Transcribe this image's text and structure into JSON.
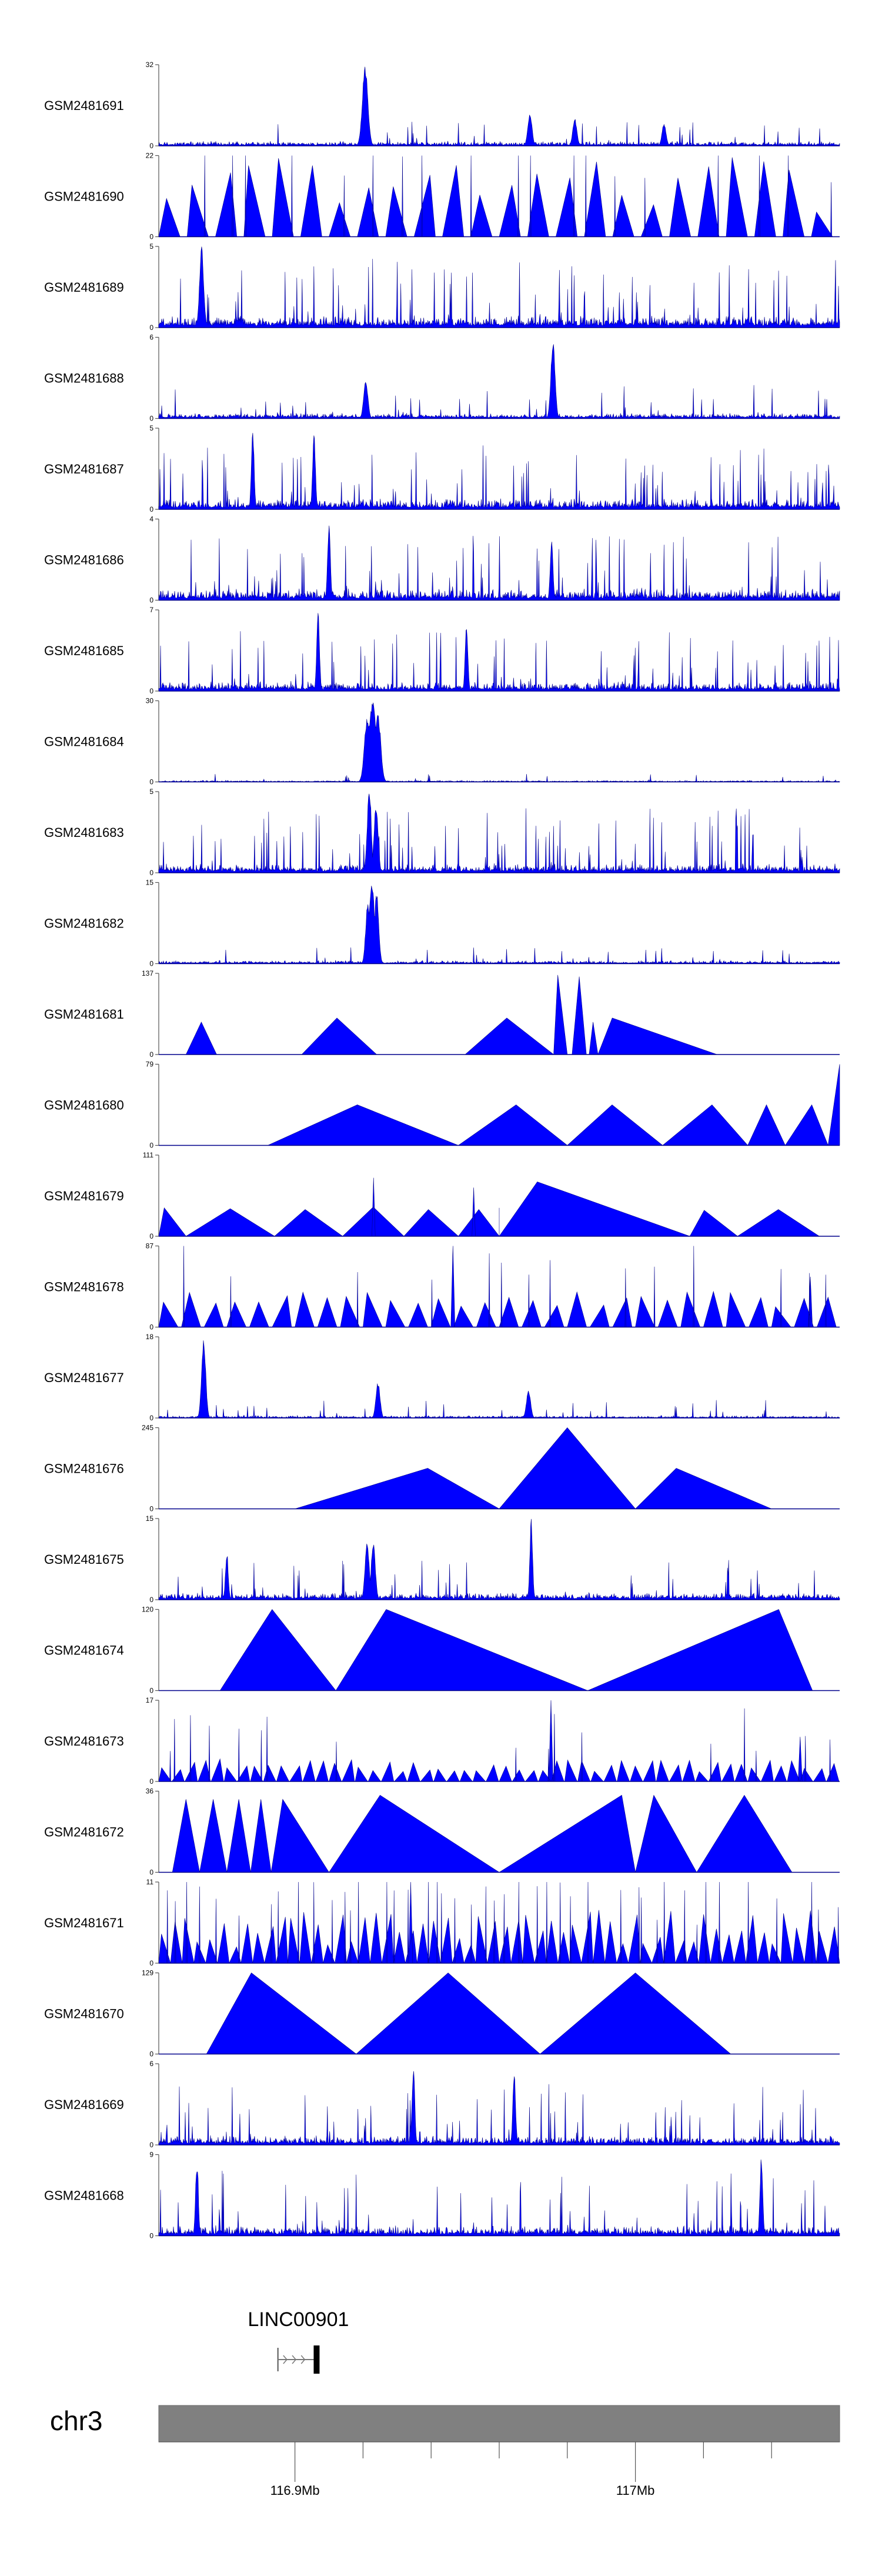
{
  "chart_data": {
    "type": "area",
    "title": "",
    "xlabel": "",
    "ylabel": "",
    "fill_color": "#0000ff",
    "stroke_color": "#00008b",
    "region": {
      "chromosome": "chr3",
      "start_mb": 116.86,
      "end_mb": 117.06
    },
    "x_ticks": [
      {
        "mb": 116.9,
        "label": "116.9Mb"
      },
      {
        "mb": 117.0,
        "label": "117Mb"
      }
    ],
    "x_minor_ticks_mb": [
      116.92,
      116.94,
      116.96,
      116.98,
      117.02,
      117.04
    ],
    "gene": {
      "name": "LINC00901",
      "tss_mb": 116.895,
      "exon_start_mb": 116.9055,
      "exon_end_mb": 116.907,
      "strand": "+"
    },
    "tracks": [
      {
        "name": "GSM2481691",
        "ymax": 32,
        "style": "dense",
        "seed": 11,
        "base": 0.06,
        "spikeP": 0.025,
        "spikeH": 0.3,
        "peaks": [
          [
            0.303,
            0.004,
            1.0
          ],
          [
            0.545,
            0.003,
            0.42
          ],
          [
            0.611,
            0.003,
            0.34
          ],
          [
            0.742,
            0.003,
            0.28
          ]
        ]
      },
      {
        "name": "GSM2481690",
        "ymax": 22,
        "style": "sparse",
        "seed": 22,
        "n": 24,
        "min": 0.3,
        "max": 1.0,
        "gap": 0.25,
        "spikeP": 0.8
      },
      {
        "name": "GSM2481689",
        "ymax": 5,
        "style": "dense",
        "seed": 33,
        "base": 0.16,
        "spikeP": 0.09,
        "spikeH": 0.85,
        "peaks": [
          [
            0.063,
            0.003,
            1.0
          ]
        ]
      },
      {
        "name": "GSM2481688",
        "ymax": 6,
        "style": "dense",
        "seed": 44,
        "base": 0.07,
        "spikeP": 0.05,
        "spikeH": 0.45,
        "peaks": [
          [
            0.579,
            0.003,
            1.0
          ],
          [
            0.304,
            0.003,
            0.5
          ]
        ]
      },
      {
        "name": "GSM2481687",
        "ymax": 5,
        "style": "dense",
        "seed": 55,
        "base": 0.14,
        "spikeP": 0.09,
        "spikeH": 0.8,
        "peaks": [
          [
            0.138,
            0.002,
            1.0
          ],
          [
            0.228,
            0.002,
            0.95
          ]
        ]
      },
      {
        "name": "GSM2481686",
        "ymax": 4,
        "style": "dense",
        "seed": 66,
        "base": 0.15,
        "spikeP": 0.09,
        "spikeH": 0.8,
        "peaks": [
          [
            0.25,
            0.002,
            1.0
          ],
          [
            0.577,
            0.002,
            0.75
          ]
        ]
      },
      {
        "name": "GSM2481685",
        "ymax": 7,
        "style": "dense",
        "seed": 77,
        "base": 0.12,
        "spikeP": 0.08,
        "spikeH": 0.75,
        "peaks": [
          [
            0.234,
            0.002,
            1.0
          ],
          [
            0.452,
            0.002,
            0.85
          ]
        ]
      },
      {
        "name": "GSM2481684",
        "ymax": 30,
        "style": "dense",
        "seed": 88,
        "base": 0.02,
        "spikeP": 0.02,
        "spikeH": 0.1,
        "peaks": [
          [
            0.314,
            0.006,
            1.0
          ],
          [
            0.306,
            0.004,
            0.8
          ],
          [
            0.322,
            0.004,
            0.85
          ]
        ]
      },
      {
        "name": "GSM2481683",
        "ymax": 5,
        "style": "dense",
        "seed": 99,
        "base": 0.12,
        "spikeP": 0.09,
        "spikeH": 0.8,
        "peaks": [
          [
            0.309,
            0.003,
            1.0
          ],
          [
            0.319,
            0.003,
            0.85
          ]
        ]
      },
      {
        "name": "GSM2481682",
        "ymax": 15,
        "style": "dense",
        "seed": 110,
        "base": 0.04,
        "spikeP": 0.03,
        "spikeH": 0.2,
        "peaks": [
          [
            0.313,
            0.004,
            1.0
          ],
          [
            0.307,
            0.003,
            0.8
          ],
          [
            0.32,
            0.003,
            0.9
          ]
        ]
      },
      {
        "name": "GSM2481681",
        "ymax": 137,
        "style": "tri",
        "tris": [
          [
            0.04,
            0.085,
            0.4,
            0.5
          ],
          [
            0.21,
            0.32,
            0.45,
            0.47
          ],
          [
            0.45,
            0.58,
            0.45,
            0.47
          ],
          [
            0.58,
            0.6,
            0.98,
            0.3
          ],
          [
            0.607,
            0.628,
            0.96,
            0.5
          ],
          [
            0.632,
            0.645,
            0.4,
            0.45
          ],
          [
            0.645,
            0.82,
            0.45,
            0.12
          ]
        ]
      },
      {
        "name": "GSM2481680",
        "ymax": 79,
        "style": "tri",
        "tris": [
          [
            0.16,
            0.44,
            0.5,
            0.47
          ],
          [
            0.44,
            0.6,
            0.5,
            0.53
          ],
          [
            0.6,
            0.74,
            0.5,
            0.47
          ],
          [
            0.74,
            0.865,
            0.5,
            0.58
          ],
          [
            0.865,
            0.92,
            0.5,
            0.5
          ],
          [
            0.92,
            0.983,
            0.5,
            0.62
          ],
          [
            0.983,
            1.0,
            1.0,
            1.0
          ]
        ]
      },
      {
        "name": "GSM2481679",
        "ymax": 111,
        "style": "tri",
        "tris": [
          [
            0.0,
            0.04,
            0.35,
            0.2
          ],
          [
            0.04,
            0.17,
            0.34,
            0.5
          ],
          [
            0.17,
            0.27,
            0.33,
            0.45
          ],
          [
            0.27,
            0.36,
            0.36,
            0.5
          ],
          [
            0.36,
            0.44,
            0.33,
            0.45
          ],
          [
            0.44,
            0.5,
            0.33,
            0.5
          ],
          [
            0.5,
            0.5,
            0.35,
            0.5
          ],
          [
            0.5,
            0.78,
            0.67,
            0.2
          ],
          [
            0.78,
            0.85,
            0.32,
            0.3
          ],
          [
            0.85,
            0.97,
            0.33,
            0.5
          ],
          [
            0.313,
            0.318,
            0.72,
            0.5
          ],
          [
            0.46,
            0.465,
            0.6,
            0.5
          ]
        ]
      },
      {
        "name": "GSM2481678",
        "ymax": 87,
        "style": "sparse",
        "seed": 141,
        "n": 30,
        "min": 0.25,
        "max": 0.45,
        "gap": 0.15,
        "spikeP": 0.3,
        "peaks": [
          [
            0.432,
            0.003,
            1.0
          ],
          [
            0.957,
            0.003,
            0.62
          ]
        ]
      },
      {
        "name": "GSM2481677",
        "ymax": 18,
        "style": "dense",
        "seed": 152,
        "base": 0.03,
        "spikeP": 0.04,
        "spikeH": 0.25,
        "peaks": [
          [
            0.066,
            0.003,
            1.0
          ],
          [
            0.322,
            0.003,
            0.45
          ],
          [
            0.543,
            0.003,
            0.35
          ]
        ]
      },
      {
        "name": "GSM2481676",
        "ymax": 245,
        "style": "tri",
        "tris": [
          [
            0.2,
            0.5,
            0.5,
            0.65
          ],
          [
            0.5,
            0.7,
            1.0,
            0.5
          ],
          [
            0.7,
            0.9,
            0.5,
            0.3
          ]
        ]
      },
      {
        "name": "GSM2481675",
        "ymax": 15,
        "style": "dense",
        "seed": 174,
        "base": 0.09,
        "spikeP": 0.05,
        "spikeH": 0.5,
        "peaks": [
          [
            0.1,
            0.002,
            0.6
          ],
          [
            0.306,
            0.003,
            0.75
          ],
          [
            0.315,
            0.003,
            0.72
          ],
          [
            0.547,
            0.002,
            1.0
          ]
        ]
      },
      {
        "name": "GSM2481674",
        "ymax": 120,
        "style": "tri",
        "tris": [
          [
            0.09,
            0.26,
            1.0,
            0.45
          ],
          [
            0.26,
            0.63,
            1.0,
            0.2
          ],
          [
            0.63,
            0.96,
            1.0,
            0.85
          ]
        ]
      },
      {
        "name": "GSM2481673",
        "ymax": 17,
        "style": "sparse",
        "seed": 196,
        "n": 52,
        "min": 0.12,
        "max": 0.28,
        "gap": 0.05,
        "spikeP": 0.3,
        "peaks": [
          [
            0.576,
            0.003,
            1.0
          ],
          [
            0.942,
            0.003,
            0.55
          ]
        ]
      },
      {
        "name": "GSM2481672",
        "ymax": 36,
        "style": "tri",
        "tris": [
          [
            0.02,
            0.06,
            0.9,
            0.5
          ],
          [
            0.06,
            0.1,
            0.9,
            0.5
          ],
          [
            0.1,
            0.135,
            0.9,
            0.5
          ],
          [
            0.135,
            0.165,
            0.9,
            0.5
          ],
          [
            0.165,
            0.25,
            0.9,
            0.2
          ],
          [
            0.25,
            0.5,
            0.95,
            0.3
          ],
          [
            0.5,
            0.7,
            0.95,
            0.9
          ],
          [
            0.7,
            0.79,
            0.95,
            0.3
          ],
          [
            0.79,
            0.93,
            0.95,
            0.5
          ]
        ]
      },
      {
        "name": "GSM2481671",
        "ymax": 11,
        "style": "sparse",
        "seed": 218,
        "n": 58,
        "min": 0.2,
        "max": 0.7,
        "gap": 0.0,
        "spikeP": 0.75,
        "peaks": [
          [
            0.37,
            0.003,
            1.0
          ]
        ]
      },
      {
        "name": "GSM2481670",
        "ymax": 129,
        "style": "tri",
        "tris": [
          [
            0.07,
            0.29,
            1.0,
            0.3
          ],
          [
            0.29,
            0.56,
            1.0,
            0.5
          ],
          [
            0.56,
            0.84,
            1.0,
            0.5
          ]
        ]
      },
      {
        "name": "GSM2481669",
        "ymax": 6,
        "style": "dense",
        "seed": 240,
        "base": 0.12,
        "spikeP": 0.08,
        "spikeH": 0.75,
        "peaks": [
          [
            0.374,
            0.002,
            1.0
          ],
          [
            0.522,
            0.002,
            0.9
          ]
        ]
      },
      {
        "name": "GSM2481668",
        "ymax": 9,
        "style": "dense",
        "seed": 251,
        "base": 0.13,
        "spikeP": 0.08,
        "spikeH": 0.8,
        "peaks": [
          [
            0.056,
            0.002,
            0.9
          ],
          [
            0.885,
            0.002,
            1.0
          ]
        ]
      }
    ]
  }
}
